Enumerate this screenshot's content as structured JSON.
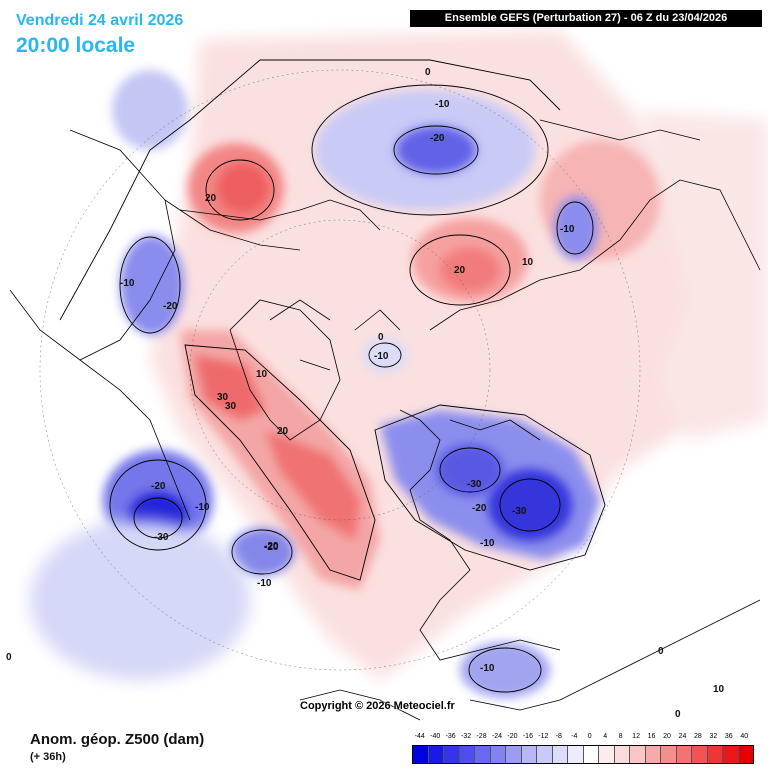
{
  "header": {
    "date_text": "Vendredi 24 avril 2026",
    "time_text": "20:00 locale",
    "run_info": "Ensemble GEFS  (Perturbation 27)  -  06 Z du 23/04/2026"
  },
  "footer": {
    "variable": "Anom. géop. Z500 (dam)",
    "lead_time": "(+ 36h)",
    "copyright": "Copyright © 2026 Meteociel.fr"
  },
  "colors": {
    "negative_strong": "#0000e0",
    "negative_light": "#e0e2fb",
    "positive_strong": "#ff0000",
    "positive_light": "#fbe2e2",
    "background": "#ffffff"
  },
  "legend": {
    "ticks": [
      "-44",
      "-40",
      "-36",
      "-32",
      "-28",
      "-24",
      "-20",
      "-16",
      "-12",
      "-8",
      "-4",
      "0",
      "4",
      "8",
      "12",
      "16",
      "20",
      "24",
      "28",
      "32",
      "36",
      "40"
    ],
    "colors": [
      "#0000e0",
      "#1a1ae6",
      "#3434ea",
      "#4e4eee",
      "#6868f1",
      "#8282f4",
      "#9c9cf6",
      "#b6b6f8",
      "#cacafa",
      "#dcdcfb",
      "#ececfd",
      "#ffffff",
      "#fdecec",
      "#fbdcdc",
      "#fac6c6",
      "#f8aaaa",
      "#f68e8e",
      "#f47272",
      "#f15454",
      "#ee3636",
      "#ea1818",
      "#e60000"
    ]
  },
  "contour_labels": [
    "0",
    "-10",
    "-20",
    "20",
    "-10",
    "10",
    "20",
    "-10",
    "-20",
    "0",
    "-10",
    "10",
    "30",
    "30",
    "20",
    "-30",
    "-20",
    "-30",
    "-20",
    "-10",
    "-20",
    "-10",
    "-30",
    "-20",
    "-10",
    "-10",
    "0",
    "0",
    "0",
    "10"
  ]
}
